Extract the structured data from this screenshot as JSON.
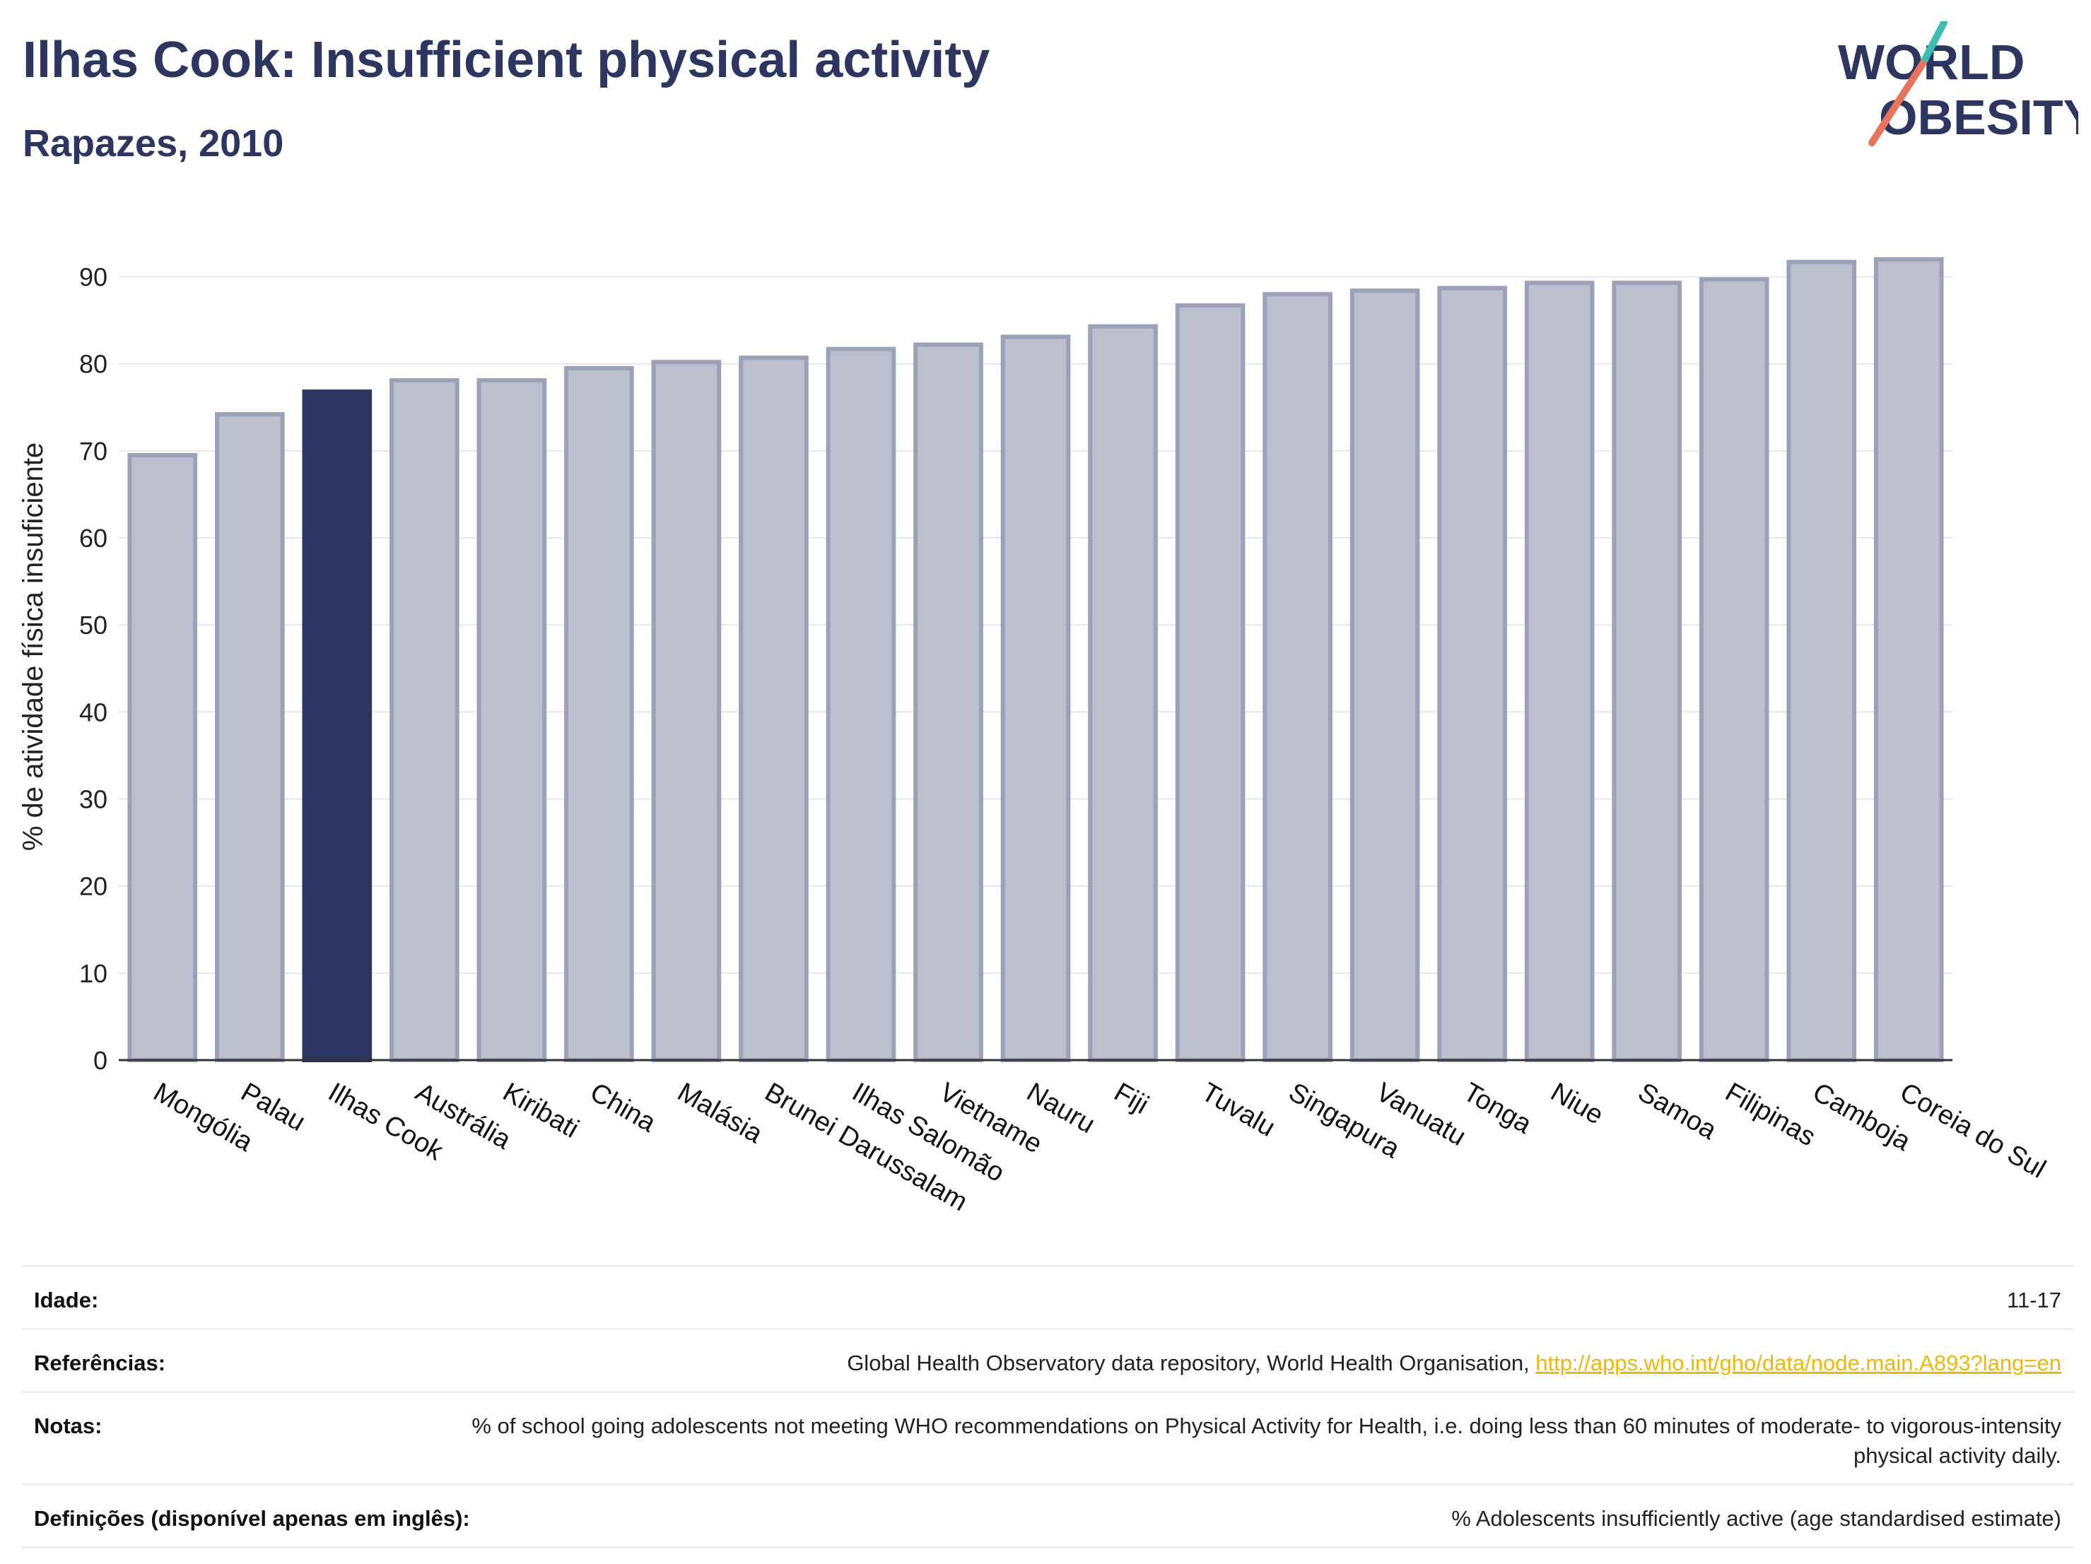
{
  "header": {
    "title": "Ilhas Cook: Insufficient physical activity",
    "subtitle": "Rapazes, 2010",
    "logo_line1": "WORLD",
    "logo_line2": "OBESITY"
  },
  "chart_data": {
    "type": "bar",
    "title": "Ilhas Cook: Insufficient physical activity",
    "subtitle": "Rapazes, 2010",
    "ylabel": "% de atividade física insuficiente",
    "xlabel": "",
    "ylim": [
      0,
      95
    ],
    "yticks": [
      0,
      10,
      20,
      30,
      40,
      50,
      60,
      70,
      80,
      90
    ],
    "grid": true,
    "highlight": "Ilhas Cook",
    "categories": [
      "Mongólia",
      "Palau",
      "Ilhas Cook",
      "Austrália",
      "Kiribati",
      "China",
      "Malásia",
      "Brunei Darussalam",
      "Ilhas Salomão",
      "Vietname",
      "Nauru",
      "Fiji",
      "Tuvalu",
      "Singapura",
      "Vanuatu",
      "Tonga",
      "Niue",
      "Samoa",
      "Filipinas",
      "Camboja",
      "Coreia do Sul"
    ],
    "values": [
      69.5,
      74.2,
      76.8,
      78.1,
      78.1,
      79.5,
      80.2,
      80.7,
      81.7,
      82.2,
      83.1,
      84.3,
      86.7,
      88.0,
      88.4,
      88.7,
      89.3,
      89.3,
      89.7,
      91.7,
      92.0
    ],
    "colors": {
      "highlight": "#2d3561",
      "default_fill": "#bcc0cd",
      "default_stroke": "#9ba1b8",
      "grid": "#e6e8ee",
      "axis": "#333333"
    }
  },
  "meta": {
    "age_label": "Idade:",
    "age_value": "11-17",
    "refs_label": "Referências:",
    "refs_text": "Global Health Observatory data repository, World Health Organisation, ",
    "refs_link": "http://apps.who.int/gho/data/node.main.A893?lang=en",
    "notes_label": "Notas:",
    "notes_value": "% of school going adolescents not meeting WHO recommendations on Physical Activity for Health, i.e. doing less than 60 minutes of moderate- to vigorous-intensity physical activity daily.",
    "defs_label": "Definições (disponível apenas em inglês):",
    "defs_value": "% Adolescents insufficiently active (age standardised estimate)"
  }
}
